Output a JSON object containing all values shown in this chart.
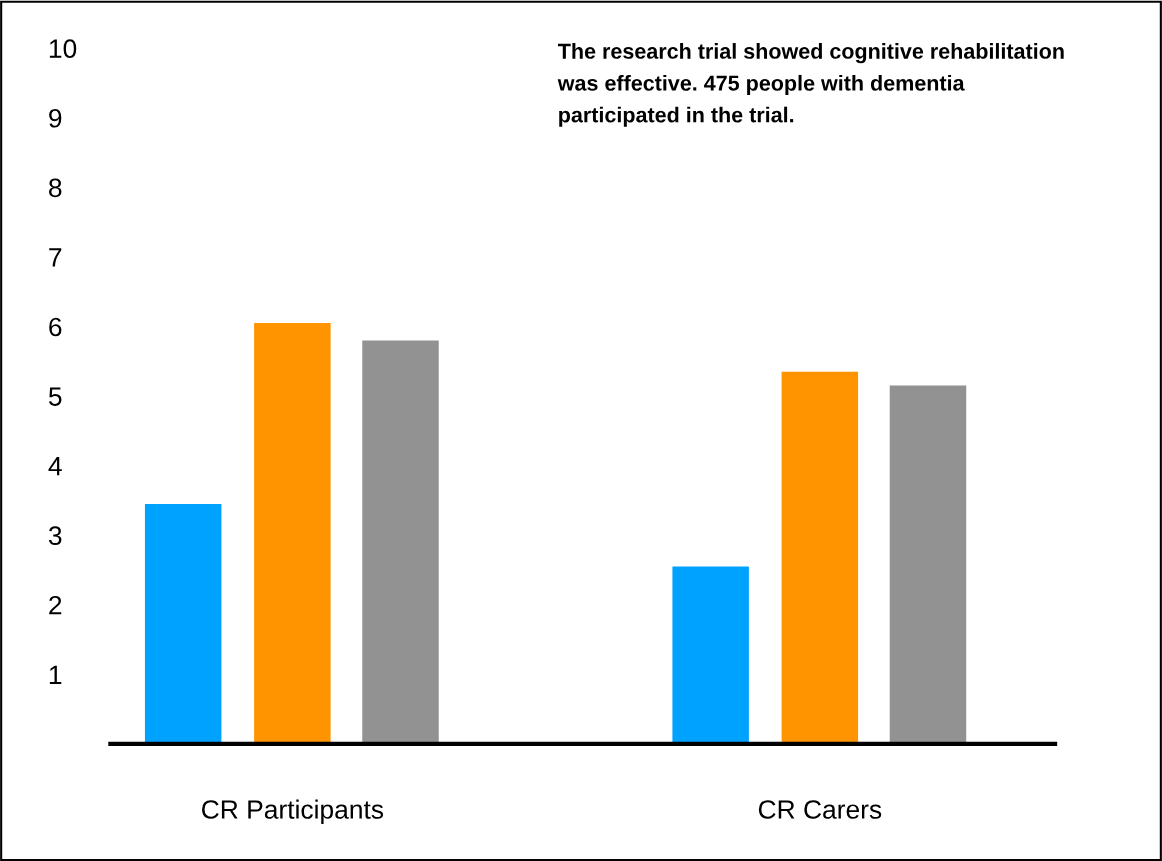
{
  "chart_data": {
    "type": "bar",
    "categories": [
      "CR Participants",
      "CR Carers"
    ],
    "series": [
      {
        "color": "#00a2ff",
        "values": [
          3.45,
          2.55
        ]
      },
      {
        "color": "#ff9300",
        "values": [
          6.05,
          5.35
        ]
      },
      {
        "color": "#929292",
        "values": [
          5.8,
          5.15
        ]
      }
    ],
    "ylim": [
      0,
      10
    ],
    "yticks": [
      1,
      2,
      3,
      4,
      5,
      6,
      7,
      8,
      9,
      10
    ],
    "grid": false,
    "legend": false,
    "annotations": [
      "The research trial showed cognitive rehabilitation was effective. 475 people with dementia participated in the trial."
    ]
  }
}
